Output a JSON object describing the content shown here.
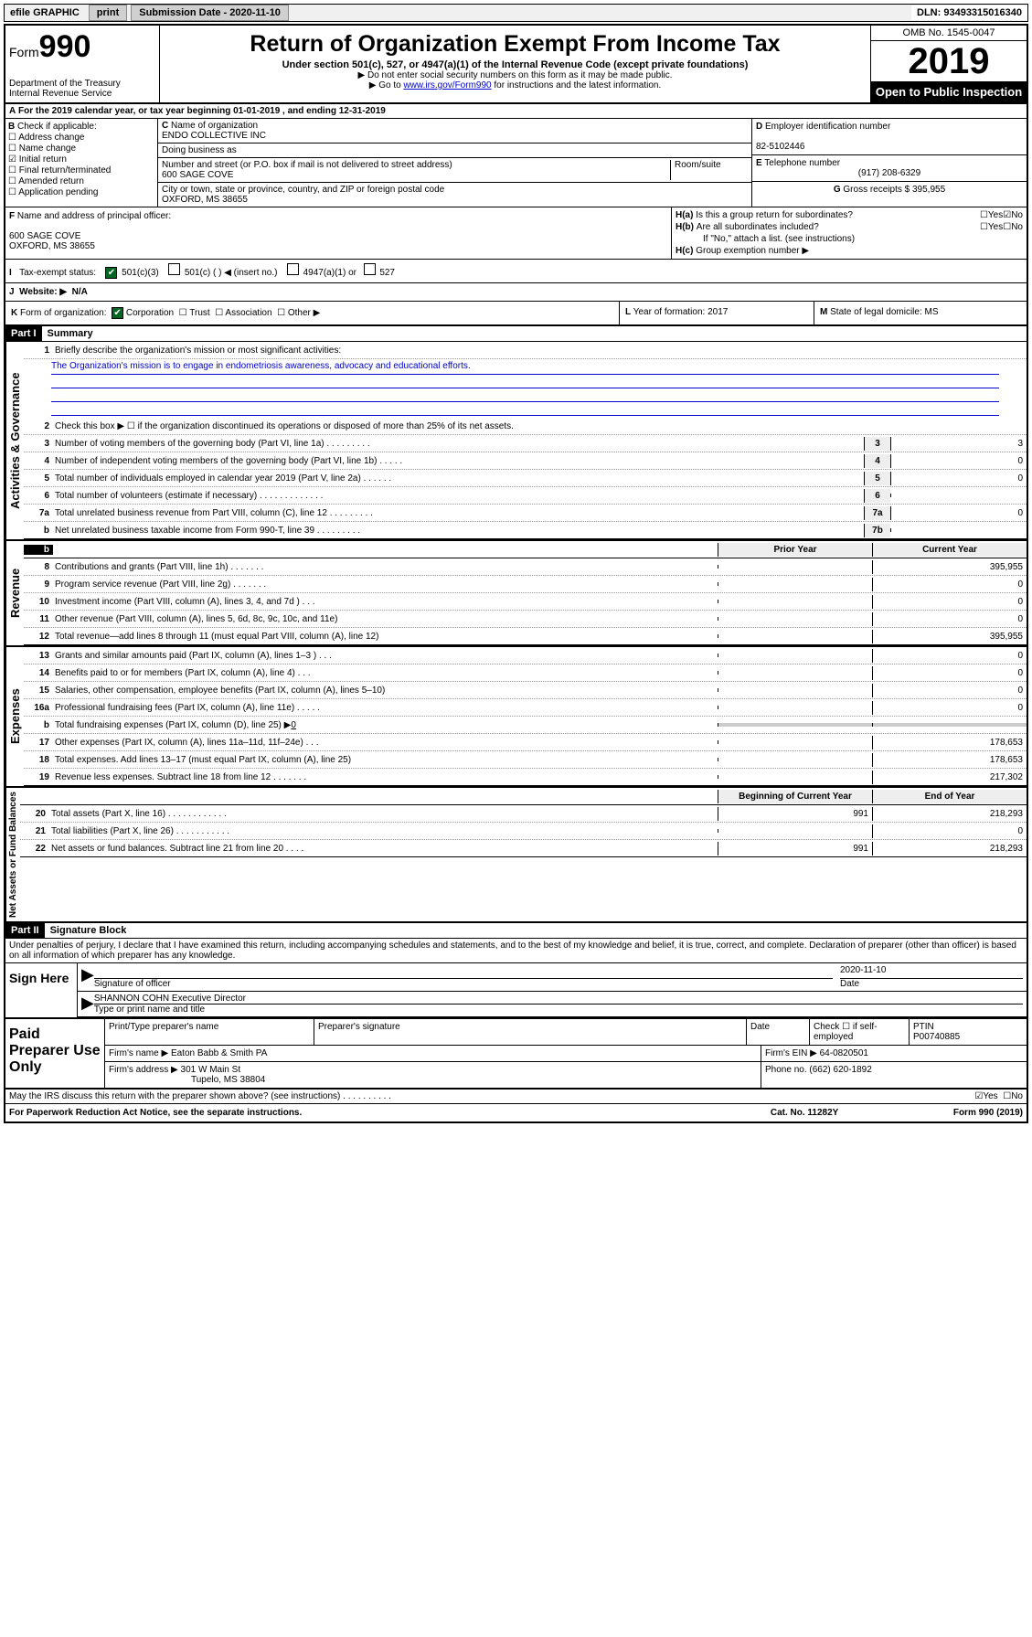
{
  "topbar": {
    "efile": "efile GRAPHIC",
    "print": "print",
    "subdate_lbl": "Submission Date - 2020-11-10",
    "dln": "DLN: 93493315016340"
  },
  "header": {
    "form_word": "Form",
    "form_num": "990",
    "dept": "Department of the Treasury\nInternal Revenue Service",
    "title": "Return of Organization Exempt From Income Tax",
    "sub": "Under section 501(c), 527, or 4947(a)(1) of the Internal Revenue Code (except private foundations)",
    "note1": "▶ Do not enter social security numbers on this form as it may be made public.",
    "note2_pre": "▶ Go to ",
    "note2_link": "www.irs.gov/Form990",
    "note2_post": " for instructions and the latest information.",
    "omb": "OMB No. 1545-0047",
    "year": "2019",
    "open": "Open to Public Inspection"
  },
  "A": {
    "text": "For the 2019 calendar year, or tax year beginning 01-01-2019   , and ending 12-31-2019"
  },
  "B": {
    "hdr": "Check if applicable:",
    "opts": [
      "Address change",
      "Name change",
      "Initial return",
      "Final return/terminated",
      "Amended return",
      "Application pending"
    ],
    "checked": [
      false,
      false,
      true,
      false,
      false,
      false
    ]
  },
  "C": {
    "name_lbl": "Name of organization",
    "name": "ENDO COLLECTIVE INC",
    "dba_lbl": "Doing business as",
    "addr_lbl": "Number and street (or P.O. box if mail is not delivered to street address)",
    "room_lbl": "Room/suite",
    "addr": "600 SAGE COVE",
    "city_lbl": "City or town, state or province, country, and ZIP or foreign postal code",
    "city": "OXFORD, MS  38655"
  },
  "D": {
    "lbl": "Employer identification number",
    "val": "82-5102446"
  },
  "E": {
    "lbl": "Telephone number",
    "val": "(917) 208-6329"
  },
  "G": {
    "lbl": "Gross receipts $",
    "val": "395,955"
  },
  "F": {
    "lbl": "Name and address of principal officer:",
    "addr1": "600 SAGE COVE",
    "addr2": "OXFORD, MS  38655"
  },
  "H": {
    "a_lbl": "Is this a group return for subordinates?",
    "a_yes": "Yes",
    "a_no": "No",
    "b_lbl": "Are all subordinates included?",
    "b_yes": "Yes",
    "b_no": "No",
    "b_note": "If \"No,\" attach a list. (see instructions)",
    "c_lbl": "Group exemption number ▶"
  },
  "I": {
    "lbl": "Tax-exempt status:",
    "o1": "501(c)(3)",
    "o2": "501(c) (   ) ◀ (insert no.)",
    "o3": "4947(a)(1) or",
    "o4": "527"
  },
  "J": {
    "lbl": "Website: ▶",
    "val": "N/A"
  },
  "K": {
    "lbl": "Form of organization:",
    "o1": "Corporation",
    "o2": "Trust",
    "o3": "Association",
    "o4": "Other ▶"
  },
  "L": {
    "lbl": "Year of formation:",
    "val": "2017"
  },
  "M": {
    "lbl": "State of legal domicile:",
    "val": "MS"
  },
  "part1": {
    "hdr": "Part I",
    "title": "Summary"
  },
  "gov": {
    "label": "Activities & Governance",
    "l1_lbl": "Briefly describe the organization's mission or most significant activities:",
    "l1_val": "The Organization's mission is to engage in endometriosis awareness, advocacy and educational efforts.",
    "l2": "Check this box ▶ ☐  if the organization discontinued its operations or disposed of more than 25% of its net assets.",
    "l3": "Number of voting members of the governing body (Part VI, line 1a)   .   .   .   .   .   .   .   .   .",
    "l4": "Number of independent voting members of the governing body (Part VI, line 1b)   .   .   .   .   .",
    "l5": "Total number of individuals employed in calendar year 2019 (Part V, line 2a)   .   .   .   .   .   .",
    "l6": "Total number of volunteers (estimate if necessary)    .    .    .    .    .    .    .    .    .    .    .    .    .",
    "l7a": "Total unrelated business revenue from Part VIII, column (C), line 12   .   .   .   .   .   .   .   .   .",
    "l7b": "Net unrelated business taxable income from Form 990-T, line 39    .    .    .    .    .    .    .    .    .",
    "v3": "3",
    "v4": "0",
    "v5": "0",
    "v6": "",
    "v7a": "0",
    "v7b": ""
  },
  "revhdr": {
    "b": "b",
    "prior": "Prior Year",
    "current": "Current Year"
  },
  "rev": {
    "label": "Revenue",
    "l8": "Contributions and grants (Part VIII, line 1h)    .    .    .    .    .    .    .",
    "l9": "Program service revenue (Part VIII, line 2g)    .    .    .    .    .    .    .",
    "l10": "Investment income (Part VIII, column (A), lines 3, 4, and 7d )   .   .   .",
    "l11": "Other revenue (Part VIII, column (A), lines 5, 6d, 8c, 9c, 10c, and 11e)",
    "l12": "Total revenue—add lines 8 through 11 (must equal Part VIII, column (A), line 12)",
    "v8": "395,955",
    "v9": "0",
    "v10": "0",
    "v11": "0",
    "v12": "395,955"
  },
  "exp": {
    "label": "Expenses",
    "l13": "Grants and similar amounts paid (Part IX, column (A), lines 1–3 )   .   .   .",
    "l14": "Benefits paid to or for members (Part IX, column (A), line 4)   .   .   .",
    "l15": "Salaries, other compensation, employee benefits (Part IX, column (A), lines 5–10)",
    "l16a": "Professional fundraising fees (Part IX, column (A), line 11e)   .   .   .   .   .",
    "l16b_pre": "Total fundraising expenses (Part IX, column (D), line 25) ▶",
    "l16b_val": "0",
    "l17": "Other expenses (Part IX, column (A), lines 11a–11d, 11f–24e)   .   .   .",
    "l18": "Total expenses. Add lines 13–17 (must equal Part IX, column (A), line 25)",
    "l19": "Revenue less expenses. Subtract line 18 from line 12   .   .   .   .   .   .   .",
    "v13": "0",
    "v14": "0",
    "v15": "0",
    "v16a": "0",
    "v17": "178,653",
    "v18": "178,653",
    "v19": "217,302"
  },
  "net": {
    "label": "Net Assets or Fund Balances",
    "h_boy": "Beginning of Current Year",
    "h_eoy": "End of Year",
    "l20": "Total assets (Part X, line 16)   .   .   .   .   .   .   .   .   .   .   .   .",
    "l21": "Total liabilities (Part X, line 26)   .   .   .   .   .   .   .   .   .   .   .",
    "l22": "Net assets or fund balances. Subtract line 21 from line 20   .   .   .   .",
    "b20": "991",
    "e20": "218,293",
    "b21": "",
    "e21": "0",
    "b22": "991",
    "e22": "218,293"
  },
  "part2": {
    "hdr": "Part II",
    "title": "Signature Block",
    "decl": "Under penalties of perjury, I declare that I have examined this return, including accompanying schedules and statements, and to the best of my knowledge and belief, it is true, correct, and complete. Declaration of preparer (other than officer) is based on all information of which preparer has any knowledge."
  },
  "sign": {
    "lbl": "Sign Here",
    "sig_lbl": "Signature of officer",
    "date_lbl": "Date",
    "date": "2020-11-10",
    "name": "SHANNON COHN  Executive Director",
    "name_lbl": "Type or print name and title"
  },
  "paid": {
    "lbl": "Paid Preparer Use Only",
    "h1": "Print/Type preparer's name",
    "h2": "Preparer's signature",
    "h3": "Date",
    "h4": "Check ☐ if self-employed",
    "h5": "PTIN",
    "ptin": "P00740885",
    "firm_lbl": "Firm's name    ▶",
    "firm": "Eaton Babb & Smith PA",
    "ein_lbl": "Firm's EIN ▶",
    "ein": "64-0820501",
    "addr_lbl": "Firm's address ▶",
    "addr1": "301 W Main St",
    "addr2": "Tupelo, MS  38804",
    "phone_lbl": "Phone no.",
    "phone": "(662) 620-1892"
  },
  "irsq": {
    "q": "May the IRS discuss this return with the preparer shown above? (see instructions)   .   .   .   .   .   .   .   .   .   .",
    "yes": "Yes",
    "no": "No"
  },
  "footer": {
    "left": "For Paperwork Reduction Act Notice, see the separate instructions.",
    "mid": "Cat. No. 11282Y",
    "right": "Form 990 (2019)"
  }
}
